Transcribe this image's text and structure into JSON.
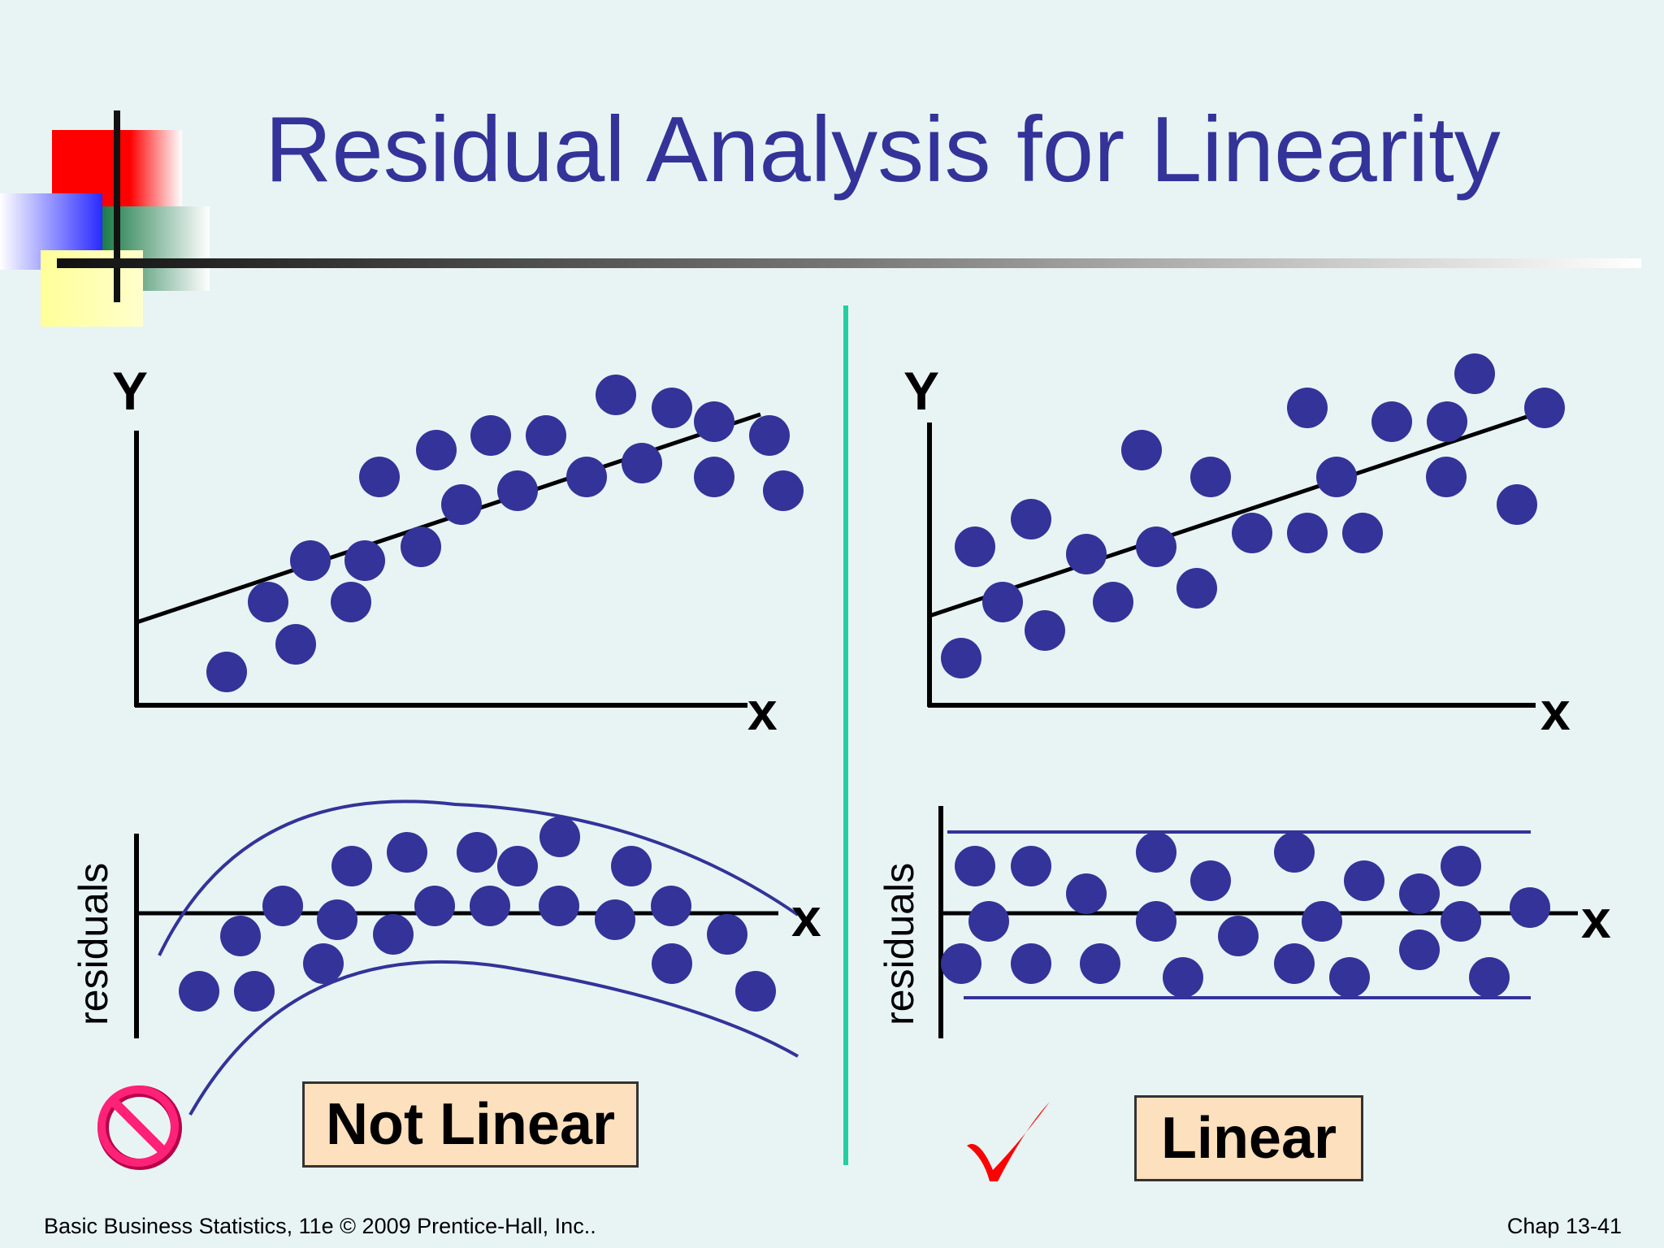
{
  "slide": {
    "title": "Residual Analysis for Linearity",
    "footer_left": "Basic Business Statistics, 11e © 2009 Prentice-Hall, Inc..",
    "footer_right": "Chap 13-41"
  },
  "colors": {
    "background": "#e8f4f4",
    "title": "#333399",
    "dots": "#333399",
    "divider": "#20d0a0",
    "label_box": "#fde0bd",
    "no_symbol": "#e8005a",
    "checkmark": "#ff0000"
  },
  "panels": {
    "left": {
      "scatter_y_label": "Y",
      "scatter_x_label": "x",
      "residual_y_label": "residuals",
      "residual_x_label": "x",
      "verdict": "Not Linear",
      "verdict_icon": "prohibited-icon"
    },
    "right": {
      "scatter_y_label": "Y",
      "scatter_x_label": "x",
      "residual_y_label": "residuals",
      "residual_x_label": "x",
      "verdict": "Linear",
      "verdict_icon": "checkmark-icon"
    }
  }
}
